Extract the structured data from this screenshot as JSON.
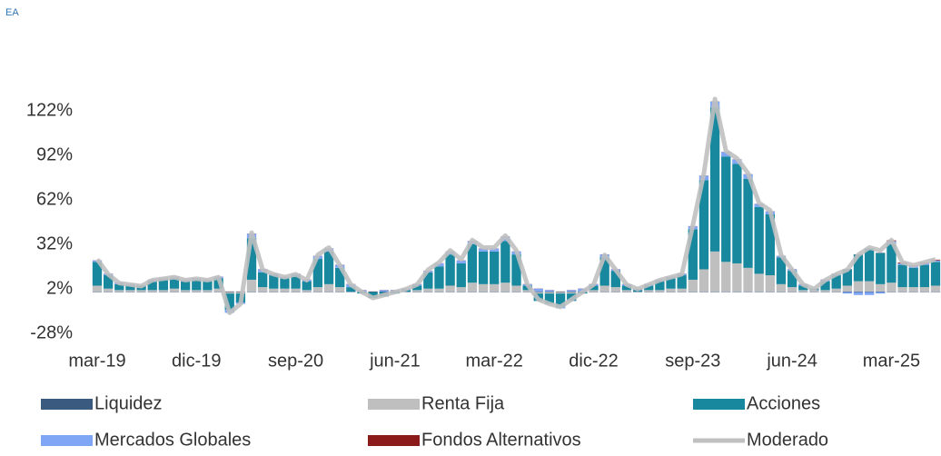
{
  "chart_data": {
    "type": "stacked-bar-line",
    "ylabel": "EA",
    "categories": [
      "mar-19",
      null,
      null,
      null,
      null,
      null,
      null,
      null,
      null,
      "dic-19",
      null,
      null,
      null,
      null,
      null,
      null,
      null,
      null,
      "sep-20",
      null,
      null,
      null,
      null,
      null,
      null,
      null,
      null,
      "jun-21",
      null,
      null,
      null,
      null,
      null,
      null,
      null,
      null,
      "mar-22",
      null,
      null,
      null,
      null,
      null,
      null,
      null,
      null,
      "dic-22",
      null,
      null,
      null,
      null,
      null,
      null,
      null,
      null,
      "sep-23",
      null,
      null,
      null,
      null,
      null,
      null,
      null,
      null,
      "jun-24",
      null,
      null,
      null,
      null,
      null,
      null,
      null,
      null,
      "mar-25",
      null,
      null,
      null,
      null
    ],
    "ylim": [
      -37,
      152
    ],
    "yticks": [
      {
        "value": -28,
        "label": "-28%"
      },
      {
        "value": 2,
        "label": "2%"
      },
      {
        "value": 32,
        "label": "32%"
      },
      {
        "value": 62,
        "label": "62%"
      },
      {
        "value": 92,
        "label": "92%"
      },
      {
        "value": 122,
        "label": "122%"
      }
    ],
    "series": [
      {
        "name": "Liquidez",
        "color": "#3a5a80",
        "kind": "bar",
        "values": [
          0.3,
          0.3,
          0.3,
          0.3,
          0.3,
          0.3,
          0.3,
          0.3,
          0.3,
          0.3,
          0.3,
          0.3,
          0.3,
          0.3,
          0.3,
          0.3,
          0.3,
          0.3,
          0.3,
          0.3,
          0.3,
          0.3,
          0.3,
          0.3,
          0.3,
          0.3,
          0.3,
          0.3,
          0.3,
          0.3,
          0.3,
          0.3,
          0.3,
          0.3,
          0.3,
          0.3,
          0.3,
          0.3,
          0.3,
          0.3,
          0.3,
          0.3,
          0.3,
          0.3,
          0.3,
          0.3,
          0.3,
          0.3,
          0.3,
          0.3,
          0.3,
          0.3,
          0.3,
          0.3,
          0.3,
          0.3,
          0.3,
          0.3,
          0.3,
          0.3,
          0.3,
          0.3,
          0.3,
          0.3,
          0.3,
          0.3,
          0.3,
          0.3,
          0.3,
          0.3,
          0.3,
          0.3,
          0.3,
          0.3,
          0.3,
          0.3,
          0.3
        ]
      },
      {
        "name": "Renta Fija",
        "color": "#bfbfbf",
        "kind": "bar",
        "values": [
          4,
          2,
          1,
          1,
          1,
          1,
          1,
          2,
          1,
          1,
          1,
          2,
          -1,
          -1,
          8,
          3,
          2,
          2,
          2,
          1,
          3,
          5,
          3,
          0,
          0,
          0,
          0,
          0,
          0,
          1,
          2,
          2,
          4,
          3,
          6,
          5,
          5,
          6,
          4,
          1,
          -1,
          -1,
          -1,
          -1,
          0,
          1,
          4,
          3,
          1,
          0,
          1,
          1,
          2,
          2,
          8,
          15,
          27,
          20,
          19,
          16,
          12,
          11,
          5,
          3,
          1,
          1,
          1,
          2,
          4,
          7,
          7,
          5,
          6,
          3,
          3,
          3,
          4
        ]
      },
      {
        "name": "Acciones",
        "color": "#17889e",
        "kind": "bar",
        "values": [
          16,
          9,
          4,
          3,
          3,
          6,
          7,
          7,
          6,
          7,
          6,
          7,
          -11,
          -6,
          28,
          10,
          9,
          7,
          9,
          6,
          19,
          22,
          13,
          3,
          -1,
          -4,
          -3,
          -1,
          1,
          3,
          11,
          15,
          21,
          16,
          26,
          22,
          22,
          28,
          21,
          3,
          -5,
          -7,
          -9,
          -5,
          -1,
          3,
          19,
          11,
          3,
          1,
          3,
          6,
          7,
          9,
          34,
          60,
          97,
          71,
          67,
          60,
          45,
          41,
          18,
          11,
          3,
          1,
          6,
          9,
          11,
          18,
          22,
          21,
          26,
          15,
          13,
          15,
          16
        ]
      },
      {
        "name": "Mercados Globales",
        "color": "#7fa6f5",
        "kind": "bar",
        "values": [
          1,
          1,
          1,
          1,
          0,
          1,
          1,
          1,
          1,
          1,
          1,
          1,
          -2,
          -1,
          3,
          2,
          1,
          1,
          1,
          1,
          2,
          2,
          2,
          2,
          1,
          0,
          1,
          1,
          1,
          1,
          1,
          2,
          2,
          2,
          2,
          2,
          2,
          3,
          2,
          1,
          2,
          1,
          -1,
          1,
          2,
          1,
          2,
          1,
          1,
          1,
          1,
          1,
          1,
          1,
          2,
          3,
          4,
          3,
          3,
          3,
          2,
          2,
          1,
          1,
          1,
          0,
          1,
          1,
          -1,
          -2,
          -2,
          -1,
          2,
          1,
          1,
          1,
          1
        ]
      },
      {
        "name": "Fondos Alternativos",
        "color": "#8b1a1a",
        "kind": "bar",
        "values": [
          0.1,
          0.1,
          0.1,
          0.1,
          0.1,
          0.1,
          0.1,
          0.1,
          0.1,
          0.1,
          0.1,
          0.1,
          0.1,
          0.1,
          0.1,
          0.1,
          0.1,
          0.1,
          0.1,
          0.1,
          0.1,
          0.1,
          0.1,
          0.1,
          0.1,
          0.1,
          0.1,
          0.1,
          0.1,
          0.1,
          0.1,
          0.1,
          0.1,
          0.1,
          0.1,
          0.1,
          0.1,
          0.1,
          0.1,
          0.1,
          0.1,
          0.1,
          0.1,
          0.1,
          0.1,
          0.1,
          0.1,
          0.1,
          0.1,
          0.1,
          0.1,
          0.1,
          0.1,
          0.1,
          0.1,
          0.1,
          0.1,
          0.1,
          0.1,
          0.1,
          0.1,
          0.1,
          0.1,
          0.1,
          0.1,
          0.1,
          0.1,
          0.1,
          0.1,
          0.1,
          0.1,
          0.1,
          0.5,
          0.5,
          0.5,
          0.5,
          0.5
        ]
      },
      {
        "name": "Moderado",
        "color": "#c0c0c0",
        "kind": "line",
        "values": [
          22,
          12,
          6,
          5,
          4,
          8,
          9,
          10,
          8,
          9,
          8,
          10,
          -14,
          -8,
          40,
          15,
          12,
          10,
          12,
          8,
          25,
          30,
          18,
          5,
          0,
          -4,
          -2,
          0,
          2,
          5,
          15,
          20,
          28,
          22,
          35,
          30,
          30,
          38,
          28,
          5,
          -5,
          -8,
          -10,
          -5,
          0,
          5,
          25,
          15,
          5,
          2,
          5,
          8,
          10,
          12,
          45,
          80,
          130,
          95,
          90,
          80,
          60,
          55,
          25,
          15,
          5,
          2,
          8,
          12,
          15,
          25,
          30,
          28,
          35,
          20,
          18,
          20,
          22
        ]
      }
    ]
  }
}
